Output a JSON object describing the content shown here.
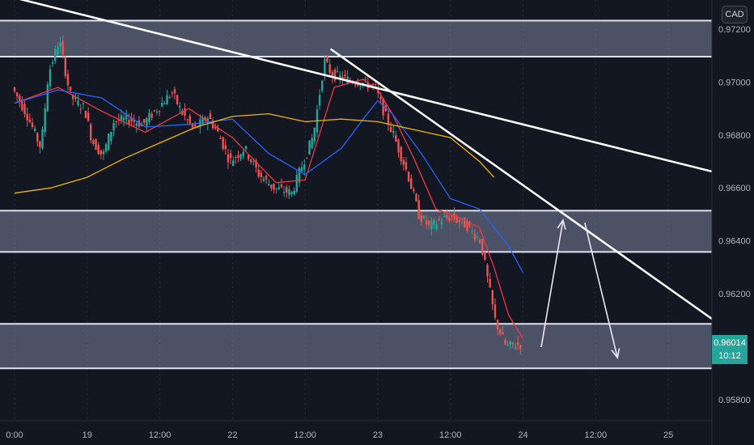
{
  "currency_label": "CAD",
  "last_price": "0.96014",
  "countdown": "10:12",
  "colors": {
    "background": "#131722",
    "zone_fill": "#9aa4c4",
    "bull": "#26a69a",
    "bear": "#ef5350",
    "ema_fast": "#f23645",
    "ma_mid": "#2962ff",
    "ma_slow": "#f0b400",
    "drawing": "#ffffff"
  },
  "chart_data": {
    "type": "candlestick",
    "instrument_quote_currency": "CAD",
    "y_axis": {
      "labels": [
        "0.97200",
        "0.97000",
        "0.96800",
        "0.96600",
        "0.96400",
        "0.96200",
        "0.95800"
      ],
      "ylim": [
        0.9572,
        0.9731
      ]
    },
    "x_axis": {
      "labels": [
        "0:00",
        "19",
        "12:00",
        "22",
        "12:00",
        "23",
        "12:00",
        "24",
        "12:00",
        "25"
      ],
      "xlim": [
        -0.2,
        9.6
      ]
    },
    "zones": [
      {
        "low": 0.97096,
        "high": 0.97232
      },
      {
        "low": 0.96358,
        "high": 0.96514
      },
      {
        "low": 0.95918,
        "high": 0.96086
      }
    ],
    "trendlines": [
      {
        "x1": -0.2,
        "y1": 0.97332,
        "x2": 9.6,
        "y2": 0.96662
      },
      {
        "x1": 4.35,
        "y1": 0.97125,
        "x2": 9.6,
        "y2": 0.96105
      }
    ],
    "arrows": [
      {
        "x1": 7.25,
        "y1": 0.95998,
        "x2": 7.55,
        "y2": 0.96478
      },
      {
        "x1": 7.85,
        "y1": 0.96468,
        "x2": 8.3,
        "y2": 0.95958
      }
    ],
    "price_path": {
      "x": [
        0,
        0.2,
        0.4,
        0.5,
        0.65,
        0.8,
        0.9,
        1.0,
        1.1,
        1.25,
        1.4,
        1.6,
        1.8,
        2.0,
        2.2,
        2.35,
        2.5,
        2.7,
        2.85,
        3.0,
        3.2,
        3.4,
        3.6,
        3.85,
        4.0,
        4.15,
        4.3,
        4.4,
        4.6,
        4.8,
        5.0,
        5.1,
        5.25,
        5.45,
        5.6,
        5.75,
        5.9,
        6.05,
        6.25,
        6.45,
        6.55,
        6.65,
        6.8,
        7.0
      ],
      "y": [
        0.9698,
        0.9688,
        0.9675,
        0.9703,
        0.9716,
        0.9695,
        0.9692,
        0.969,
        0.9678,
        0.9672,
        0.9685,
        0.9686,
        0.9684,
        0.969,
        0.9696,
        0.9688,
        0.9682,
        0.9687,
        0.968,
        0.967,
        0.9675,
        0.9665,
        0.966,
        0.9658,
        0.9669,
        0.968,
        0.9708,
        0.9703,
        0.9701,
        0.97,
        0.9698,
        0.969,
        0.968,
        0.9665,
        0.965,
        0.9645,
        0.9648,
        0.9649,
        0.9646,
        0.964,
        0.9625,
        0.961,
        0.96,
        0.9601
      ]
    },
    "moving_averages": [
      {
        "x": [
          0,
          0.6,
          1.2,
          1.8,
          2.4,
          3.0,
          3.6,
          4.0,
          4.4,
          4.8,
          5.0,
          5.2,
          5.5,
          5.8,
          6.1,
          6.4,
          6.6,
          6.8,
          7.0
        ],
        "y": [
          0.9692,
          0.9698,
          0.9689,
          0.9681,
          0.969,
          0.9679,
          0.9662,
          0.9663,
          0.9698,
          0.9701,
          0.9697,
          0.9688,
          0.9671,
          0.9652,
          0.9649,
          0.9645,
          0.963,
          0.9612,
          0.9603
        ]
      },
      {
        "x": [
          0,
          0.6,
          1.2,
          1.8,
          2.4,
          3.0,
          3.5,
          4.0,
          4.5,
          4.8,
          5.0,
          5.2,
          5.6,
          6.0,
          6.4,
          6.8,
          7.0
        ],
        "y": [
          0.9692,
          0.9697,
          0.9694,
          0.9683,
          0.9684,
          0.9686,
          0.9673,
          0.9665,
          0.9675,
          0.9686,
          0.9693,
          0.9688,
          0.9673,
          0.9656,
          0.9652,
          0.9638,
          0.9628
        ]
      },
      {
        "x": [
          0,
          0.5,
          1.0,
          1.5,
          2.0,
          2.5,
          3.0,
          3.5,
          4.0,
          4.5,
          5.0,
          5.5,
          6.0,
          6.4,
          6.6
        ],
        "y": [
          0.9658,
          0.966,
          0.9664,
          0.9671,
          0.9677,
          0.9683,
          0.9687,
          0.9688,
          0.9685,
          0.9686,
          0.9685,
          0.9682,
          0.9679,
          0.967,
          0.9664
        ]
      }
    ]
  }
}
